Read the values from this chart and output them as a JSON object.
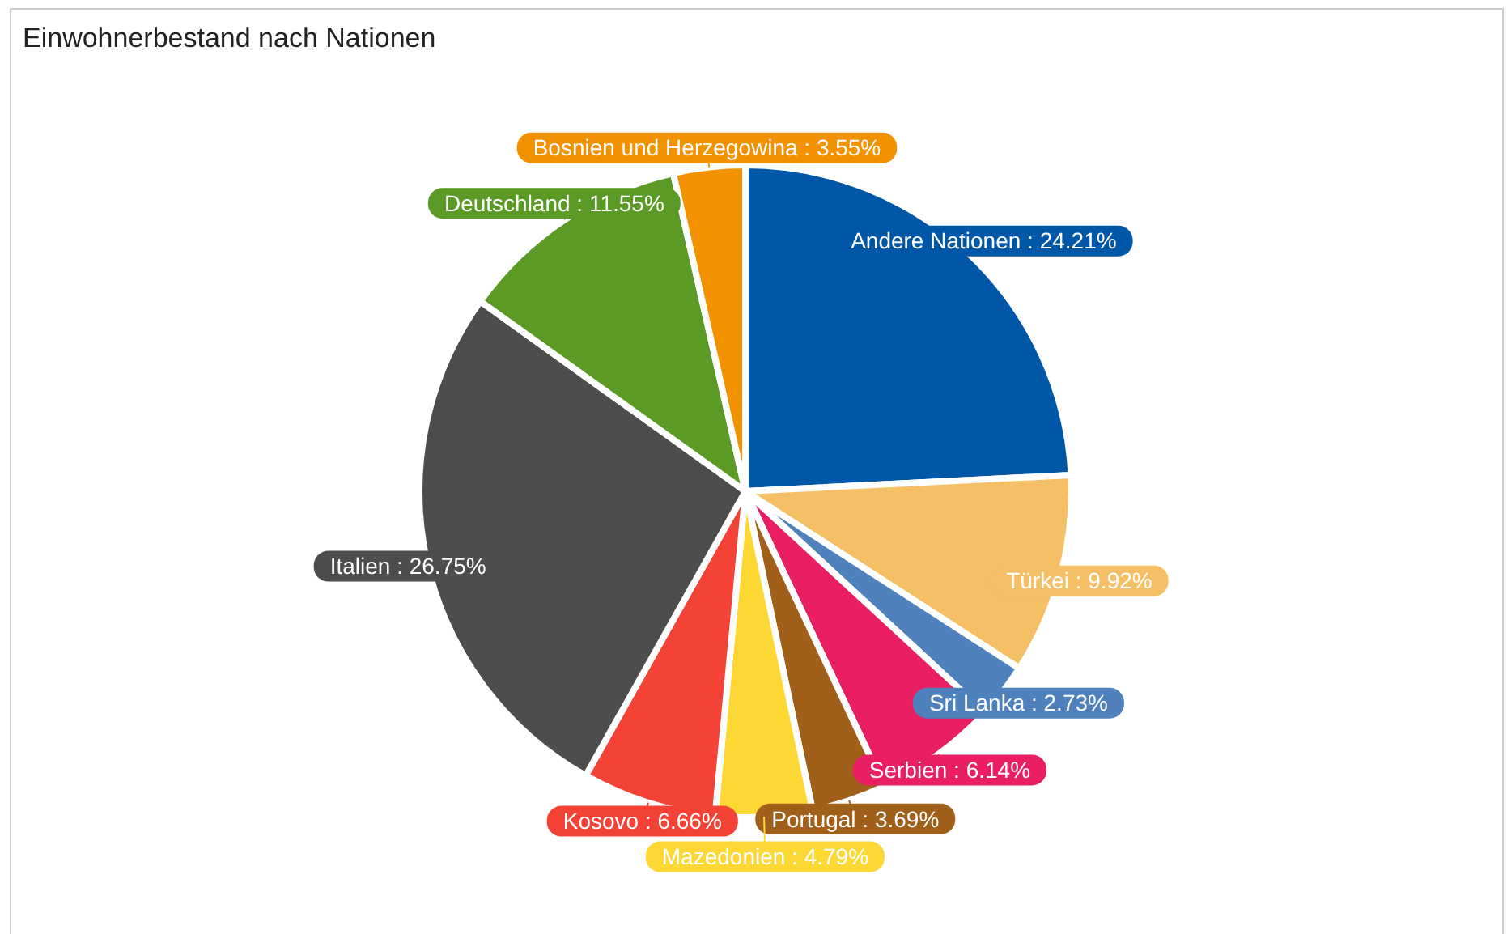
{
  "chart_data": {
    "type": "pie",
    "title": "Einwohnerbestand nach Nationen",
    "categories": [
      "Andere Nationen",
      "Türkei",
      "Sri Lanka",
      "Serbien",
      "Portugal",
      "Mazedonien",
      "Kosovo",
      "Italien",
      "Deutschland",
      "Bosnien und Herzegowina"
    ],
    "values": [
      24.21,
      9.92,
      2.73,
      6.14,
      3.69,
      4.79,
      6.66,
      26.75,
      11.55,
      3.55
    ],
    "colors": [
      "#0057a8",
      "#f5bf65",
      "#4f81bd",
      "#e91e63",
      "#a0601a",
      "#fdd835",
      "#f44336",
      "#4d4d4d",
      "#5b9a24",
      "#f39200"
    ],
    "value_labels": [
      "24.21%",
      "9.92%",
      "2.73%",
      "6.14%",
      "3.69%",
      "4.79%",
      "6.66%",
      "26.75%",
      "11.55%",
      "3.55%"
    ]
  }
}
